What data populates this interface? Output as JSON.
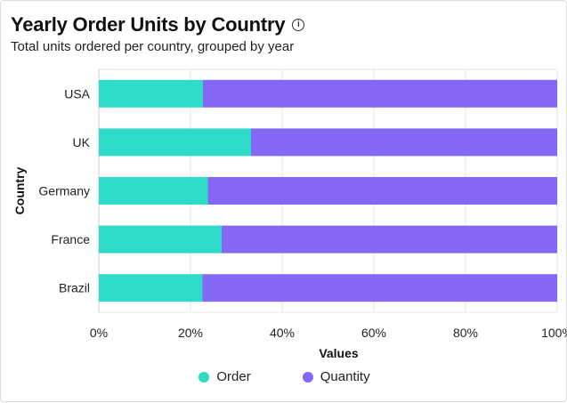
{
  "header": {
    "title": "Yearly Order Units by Country",
    "subtitle": "Total units ordered per country, grouped by year",
    "info_icon": "info-icon"
  },
  "colors": {
    "order": "#2edbc8",
    "quantity": "#8468f5",
    "grid": "#e6e6e6",
    "axis": "#cccccc"
  },
  "chart_data": {
    "type": "bar",
    "orientation": "horizontal",
    "stacked": "percent",
    "categories": [
      "USA",
      "UK",
      "Germany",
      "France",
      "Brazil"
    ],
    "series": [
      {
        "name": "Order",
        "values": [
          22.7,
          33.2,
          23.8,
          26.8,
          22.6
        ]
      },
      {
        "name": "Quantity",
        "values": [
          77.3,
          66.8,
          76.2,
          73.2,
          77.4
        ]
      }
    ],
    "xlabel": "Values",
    "ylabel": "Country",
    "xlim": [
      0,
      100
    ],
    "xticks": [
      "0%",
      "20%",
      "40%",
      "60%",
      "80%",
      "100%"
    ],
    "grid": true,
    "legend_position": "bottom"
  }
}
